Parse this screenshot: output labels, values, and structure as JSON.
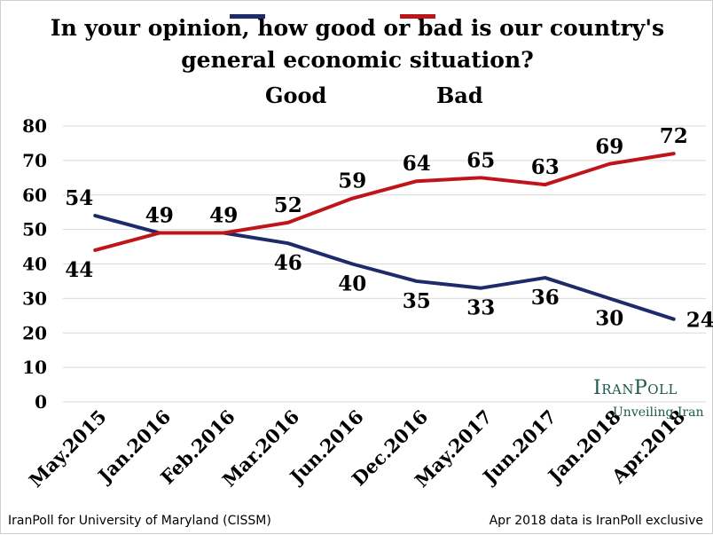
{
  "chart_data": {
    "type": "line",
    "title": "In your opinion, how good or bad is our country's",
    "title_line2": "general economic situation?",
    "categories": [
      "May.2015",
      "Jan.2016",
      "Feb.2016",
      "Mar.2016",
      "Jun.2016",
      "Dec.2016",
      "May.2017",
      "Jun.2017",
      "Jan.2018",
      "Apr.2018"
    ],
    "series": [
      {
        "name": "Good",
        "color": "#1f2a6b",
        "values": [
          54,
          49,
          49,
          46,
          40,
          35,
          33,
          36,
          30,
          24
        ]
      },
      {
        "name": "Bad",
        "color": "#c0141b",
        "values": [
          44,
          49,
          49,
          52,
          59,
          64,
          65,
          63,
          69,
          72
        ]
      }
    ],
    "ylim": [
      0,
      80
    ],
    "yticks": [
      0,
      10,
      20,
      30,
      40,
      50,
      60,
      70,
      80
    ],
    "grid": true,
    "legend_position": "top"
  },
  "footer": {
    "left": "IranPoll for University of Maryland (CISSM)",
    "right": "Apr 2018 data is IranPoll exclusive"
  },
  "logo": {
    "name": "IranPoll",
    "tagline": "Unveiling Iran"
  }
}
